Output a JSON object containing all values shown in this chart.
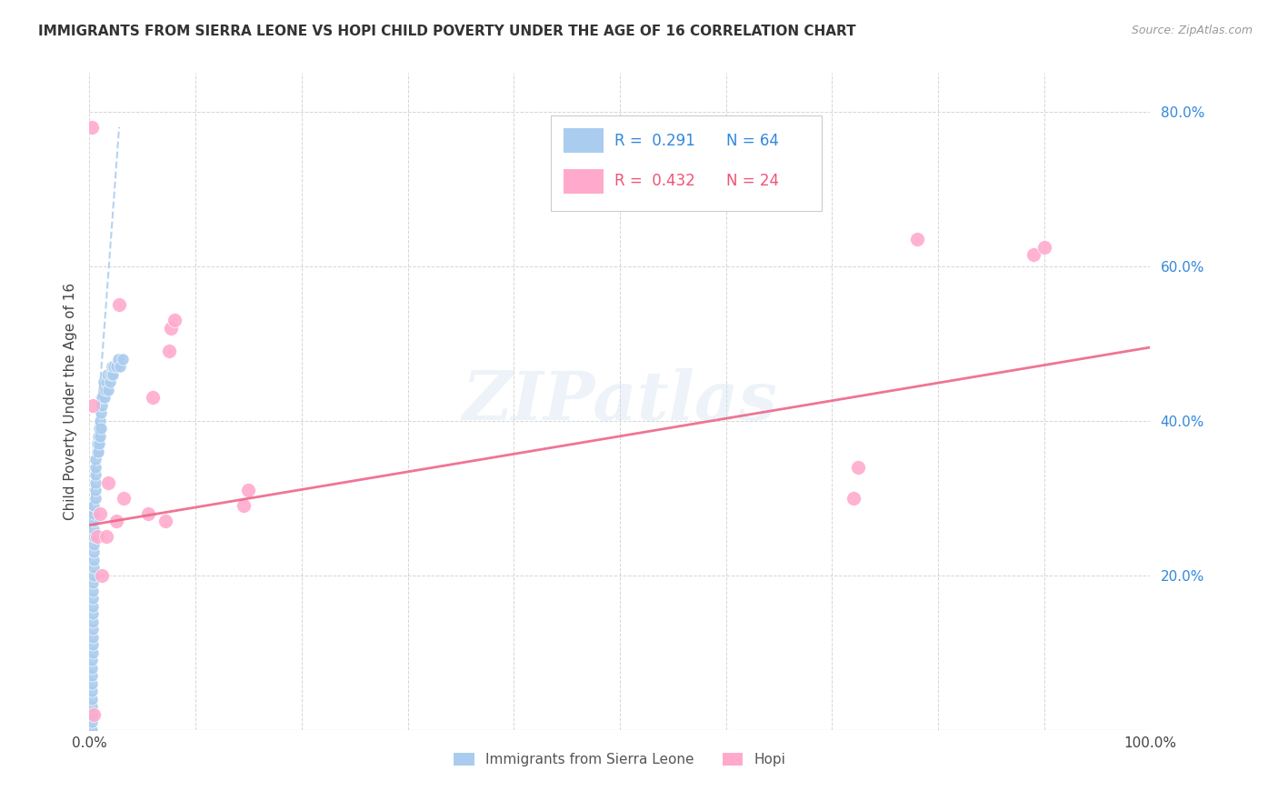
{
  "title": "IMMIGRANTS FROM SIERRA LEONE VS HOPI CHILD POVERTY UNDER THE AGE OF 16 CORRELATION CHART",
  "source": "Source: ZipAtlas.com",
  "ylabel": "Child Poverty Under the Age of 16",
  "xlim": [
    0.0,
    1.0
  ],
  "ylim": [
    0.0,
    0.85
  ],
  "xticks": [
    0.0,
    0.1,
    0.2,
    0.3,
    0.4,
    0.5,
    0.6,
    0.7,
    0.8,
    0.9,
    1.0
  ],
  "xticklabels": [
    "0.0%",
    "",
    "",
    "",
    "",
    "",
    "",
    "",
    "",
    "",
    "100.0%"
  ],
  "yticks": [
    0.0,
    0.2,
    0.4,
    0.6,
    0.8
  ],
  "yticklabels": [
    "",
    "20.0%",
    "40.0%",
    "60.0%",
    "80.0%"
  ],
  "legend_labels": [
    "Immigrants from Sierra Leone",
    "Hopi"
  ],
  "blue_R": "0.291",
  "blue_N": "64",
  "pink_R": "0.432",
  "pink_N": "24",
  "blue_color": "#aaccee",
  "pink_color": "#ffaacc",
  "blue_line_color": "#aaccee",
  "pink_line_color": "#ee6688",
  "watermark": "ZIPatlas",
  "blue_scatter_x": [
    0.002,
    0.002,
    0.002,
    0.002,
    0.002,
    0.002,
    0.002,
    0.002,
    0.002,
    0.002,
    0.003,
    0.003,
    0.003,
    0.003,
    0.003,
    0.003,
    0.003,
    0.003,
    0.003,
    0.003,
    0.004,
    0.004,
    0.004,
    0.004,
    0.004,
    0.004,
    0.004,
    0.004,
    0.004,
    0.004,
    0.006,
    0.006,
    0.006,
    0.006,
    0.006,
    0.006,
    0.007,
    0.007,
    0.008,
    0.008,
    0.009,
    0.009,
    0.01,
    0.01,
    0.011,
    0.011,
    0.012,
    0.012,
    0.013,
    0.013,
    0.014,
    0.015,
    0.016,
    0.017,
    0.018,
    0.019,
    0.02,
    0.021,
    0.022,
    0.023,
    0.025,
    0.027,
    0.029,
    0.031
  ],
  "blue_scatter_y": [
    0.0,
    0.01,
    0.02,
    0.03,
    0.04,
    0.05,
    0.06,
    0.07,
    0.08,
    0.09,
    0.1,
    0.11,
    0.12,
    0.13,
    0.14,
    0.15,
    0.16,
    0.17,
    0.18,
    0.19,
    0.2,
    0.21,
    0.22,
    0.23,
    0.24,
    0.25,
    0.26,
    0.27,
    0.28,
    0.29,
    0.3,
    0.31,
    0.32,
    0.33,
    0.34,
    0.35,
    0.36,
    0.37,
    0.36,
    0.38,
    0.37,
    0.39,
    0.38,
    0.4,
    0.39,
    0.41,
    0.42,
    0.43,
    0.44,
    0.45,
    0.43,
    0.44,
    0.45,
    0.46,
    0.44,
    0.45,
    0.46,
    0.47,
    0.46,
    0.47,
    0.47,
    0.48,
    0.47,
    0.48
  ],
  "pink_scatter_x": [
    0.002,
    0.003,
    0.004,
    0.007,
    0.01,
    0.012,
    0.016,
    0.018,
    0.025,
    0.028,
    0.032,
    0.055,
    0.06,
    0.072,
    0.075,
    0.077,
    0.08,
    0.145,
    0.15,
    0.72,
    0.725,
    0.78,
    0.89,
    0.9
  ],
  "pink_scatter_y": [
    0.78,
    0.42,
    0.02,
    0.25,
    0.28,
    0.2,
    0.25,
    0.32,
    0.27,
    0.55,
    0.3,
    0.28,
    0.43,
    0.27,
    0.49,
    0.52,
    0.53,
    0.29,
    0.31,
    0.3,
    0.34,
    0.635,
    0.615,
    0.625
  ],
  "blue_trend_x": [
    0.0,
    0.028
  ],
  "blue_trend_y": [
    0.26,
    0.78
  ],
  "pink_trend_x": [
    0.0,
    1.0
  ],
  "pink_trend_y": [
    0.265,
    0.495
  ]
}
